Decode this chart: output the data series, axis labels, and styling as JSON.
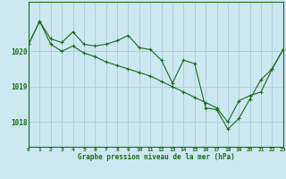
{
  "xlabel": "Graphe pression niveau de la mer (hPa)",
  "background_color": "#cce8f0",
  "grid_color": "#aaccdd",
  "line_color": "#1a6b1a",
  "xlim": [
    0,
    23
  ],
  "ylim": [
    1017.3,
    1021.4
  ],
  "yticks": [
    1018,
    1019,
    1020
  ],
  "xticks": [
    0,
    1,
    2,
    3,
    4,
    5,
    6,
    7,
    8,
    9,
    10,
    11,
    12,
    13,
    14,
    15,
    16,
    17,
    18,
    19,
    20,
    21,
    22,
    23
  ],
  "series1_x": [
    0,
    1,
    2,
    3,
    4,
    5,
    6,
    7,
    8,
    9,
    10,
    11,
    12,
    13,
    14,
    15,
    16,
    17,
    18,
    19,
    20,
    21,
    22,
    23
  ],
  "series1_y": [
    1020.2,
    1020.85,
    1020.35,
    1020.25,
    1020.55,
    1020.2,
    1020.15,
    1020.2,
    1020.3,
    1020.45,
    1020.1,
    1020.05,
    1019.75,
    1019.1,
    1019.75,
    1019.65,
    1018.4,
    1018.35,
    1017.8,
    1018.1,
    1018.65,
    1019.2,
    1019.5,
    1020.05
  ],
  "series2_x": [
    0,
    1,
    2,
    3,
    4,
    5,
    6,
    7,
    8,
    9,
    10,
    11,
    12,
    13,
    14,
    15,
    16,
    17,
    18,
    19,
    20,
    21,
    22,
    23
  ],
  "series2_y": [
    1020.2,
    1020.85,
    1020.2,
    1020.0,
    1020.15,
    1019.95,
    1019.85,
    1019.7,
    1019.6,
    1019.5,
    1019.4,
    1019.3,
    1019.15,
    1019.0,
    1018.85,
    1018.7,
    1018.55,
    1018.4,
    1018.0,
    1018.6,
    1018.75,
    1018.85,
    1019.5,
    1020.05
  ]
}
